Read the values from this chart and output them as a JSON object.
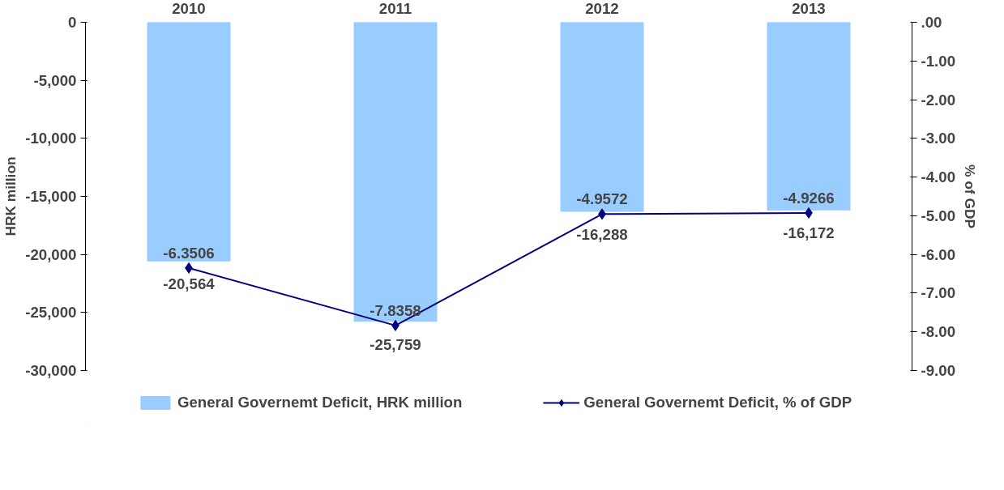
{
  "chart_data": {
    "type": "bar",
    "categories": [
      "2010",
      "2011",
      "2012",
      "2013"
    ],
    "ylabel": "HRK million",
    "y2label": "% of GDP",
    "ylim": [
      -30000,
      0
    ],
    "yticks": [
      {
        "value": -30000,
        "label": "-30,000"
      },
      {
        "value": -25000,
        "label": "-25,000"
      },
      {
        "value": -20000,
        "label": "-20,000"
      },
      {
        "value": -15000,
        "label": "-15,000"
      },
      {
        "value": -10000,
        "label": "-10,000"
      },
      {
        "value": -5000,
        "label": "-5,000"
      },
      0
    ],
    "y2lim": [
      -9,
      0
    ],
    "y2ticks": [
      {
        "value": -9,
        "label": "-9.00"
      },
      {
        "value": -8,
        "label": "-8.00"
      },
      {
        "value": -7,
        "label": "-7.00"
      },
      {
        "value": -6,
        "label": "-6.00"
      },
      {
        "value": -5,
        "label": "-5.00"
      },
      {
        "value": -4,
        "label": "-4.00"
      },
      {
        "value": -3,
        "label": "-3.00"
      },
      {
        "value": -2,
        "label": "-2.00"
      },
      {
        "value": -1,
        "label": "-1.00"
      },
      {
        "value": 0,
        "label": ".00"
      }
    ],
    "series": [
      {
        "name": "General Governemt Deficit, HRK million",
        "color": "#99ccff",
        "values": [
          -20564,
          -25759,
          -16288,
          -16172
        ],
        "value_labels": [
          "-20,564",
          "-25,759",
          "-16,288",
          "-16,172"
        ]
      },
      {
        "name": "General Governemt Deficit, % of GDP",
        "type": "line",
        "axis": "y2",
        "color": "#000080",
        "marker": "diamond",
        "values": [
          -6.3506,
          -7.8358,
          -4.9572,
          -4.9266
        ],
        "value_labels": [
          "-6.3506",
          "-7.8358",
          "-4.9572",
          "-4.9266"
        ]
      }
    ],
    "legend": "bottom",
    "grid": false
  }
}
